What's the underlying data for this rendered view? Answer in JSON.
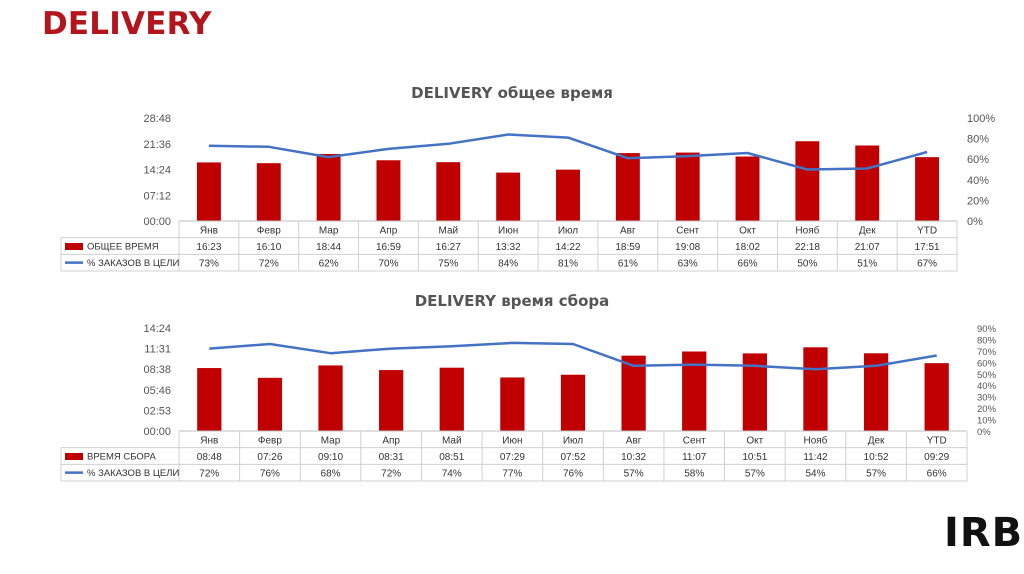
{
  "page": {
    "title": "DELIVERY",
    "logo_text": "IRB"
  },
  "colors": {
    "bar": "#c00000",
    "line": "#4472c4",
    "title": "#b3151c"
  },
  "chart_data": [
    {
      "type": "bar",
      "title": "DELIVERY общее время",
      "categories": [
        "Янв",
        "Февр",
        "Мар",
        "Апр",
        "Май",
        "Июн",
        "Июл",
        "Авг",
        "Сент",
        "Окт",
        "Нояб",
        "Дек",
        "YTD"
      ],
      "y_left_ticks": [
        "00:00",
        "07:12",
        "14:24",
        "21:36",
        "28:48"
      ],
      "y_left_range_minutes": [
        0,
        28.8
      ],
      "y_right_ticks": [
        "0%",
        "20%",
        "40%",
        "60%",
        "80%",
        "100%"
      ],
      "y_right_range": [
        0,
        100
      ],
      "series": [
        {
          "name": "ОБЩЕЕ ВРЕМЯ",
          "kind": "bar",
          "axis": "left",
          "labels": [
            "16:23",
            "16:10",
            "18:44",
            "16:59",
            "16:27",
            "13:32",
            "14:22",
            "18:59",
            "19:08",
            "18:02",
            "22:18",
            "21:07",
            "17:51"
          ]
        },
        {
          "name": "% ЗАКАЗОВ В ЦЕЛИ",
          "kind": "line",
          "axis": "right",
          "values": [
            73,
            72,
            62,
            70,
            75,
            84,
            81,
            61,
            63,
            66,
            50,
            51,
            67
          ],
          "labels": [
            "73%",
            "72%",
            "62%",
            "70%",
            "75%",
            "84%",
            "81%",
            "61%",
            "63%",
            "66%",
            "50%",
            "51%",
            "67%"
          ]
        }
      ]
    },
    {
      "type": "bar",
      "title": "DELIVERY время сбора",
      "categories": [
        "Янв",
        "Февр",
        "Мар",
        "Апр",
        "Май",
        "Июн",
        "Июл",
        "Авг",
        "Сент",
        "Окт",
        "Нояб",
        "Дек",
        "YTD"
      ],
      "y_left_ticks": [
        "00:00",
        "02:53",
        "05:46",
        "08:38",
        "11:31",
        "14:24"
      ],
      "y_left_range_minutes": [
        0,
        14.4
      ],
      "y_right_ticks": [
        "0%",
        "10%",
        "20%",
        "30%",
        "40%",
        "50%",
        "60%",
        "70%",
        "80%",
        "90%"
      ],
      "y_right_range": [
        0,
        90
      ],
      "series": [
        {
          "name": "ВРЕМЯ СБОРА",
          "kind": "bar",
          "axis": "left",
          "labels": [
            "08:48",
            "07:26",
            "09:10",
            "08:31",
            "08:51",
            "07:29",
            "07:52",
            "10:32",
            "11:07",
            "10:51",
            "11:42",
            "10:52",
            "09:29"
          ]
        },
        {
          "name": "% ЗАКАЗОВ В ЦЕЛИ",
          "kind": "line",
          "axis": "right",
          "values": [
            72,
            76,
            68,
            72,
            74,
            77,
            76,
            57,
            58,
            57,
            54,
            57,
            66
          ],
          "labels": [
            "72%",
            "76%",
            "68%",
            "72%",
            "74%",
            "77%",
            "76%",
            "57%",
            "58%",
            "57%",
            "54%",
            "57%",
            "66%"
          ]
        }
      ]
    }
  ]
}
